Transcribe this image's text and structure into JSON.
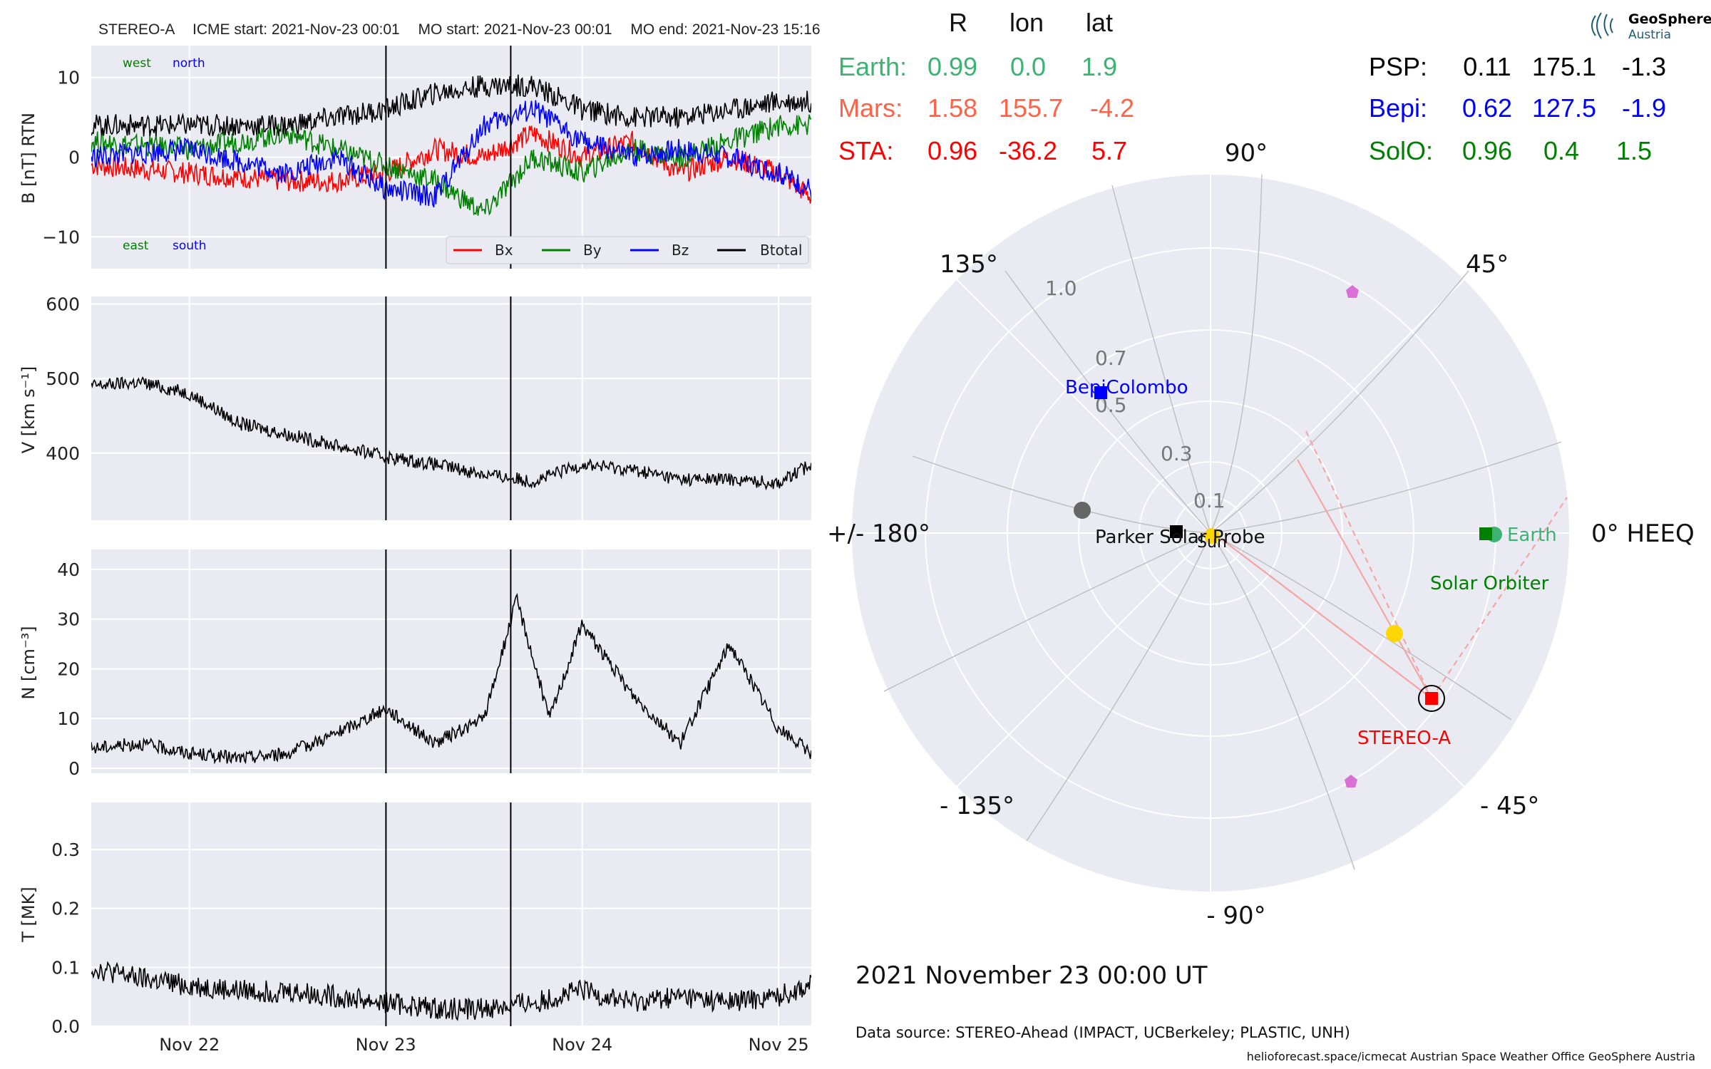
{
  "header": {
    "title": "STEREO-A",
    "icme_start": "ICME start: 2021-Nov-23 00:01",
    "mo_start": "MO start: 2021-Nov-23 00:01",
    "mo_end": "MO end: 2021-Nov-23 15:16"
  },
  "chart_data": [
    {
      "type": "line",
      "panel": "magnetic-field",
      "ylabel": "B [nT] RTN",
      "ylim": [
        -14,
        14
      ],
      "yticks": [
        "10",
        "0",
        "−10"
      ],
      "corner_labels": {
        "west": "west",
        "north": "north",
        "east": "east",
        "south": "south"
      },
      "legend_placement": "bottom-right",
      "series": [
        {
          "name": "Bx",
          "color": "#ff0000",
          "x": [
            "2021-11-21 12:00",
            "2021-11-22 00:00",
            "2021-11-22 12:00",
            "2021-11-22 18:00",
            "2021-11-23 00:00",
            "2021-11-23 06:00",
            "2021-11-23 12:00",
            "2021-11-23 18:00",
            "2021-11-24 00:00",
            "2021-11-24 06:00",
            "2021-11-24 12:00",
            "2021-11-24 18:00",
            "2021-11-25 00:00",
            "2021-11-25 04:00"
          ],
          "values": [
            -1,
            -2,
            -3,
            -3,
            -2,
            1,
            0,
            3,
            0,
            2,
            -2,
            0,
            -2,
            -5
          ]
        },
        {
          "name": "By",
          "color": "#008000",
          "x": [
            "2021-11-21 12:00",
            "2021-11-22 00:00",
            "2021-11-22 12:00",
            "2021-11-22 18:00",
            "2021-11-23 00:00",
            "2021-11-23 06:00",
            "2021-11-23 12:00",
            "2021-11-23 18:00",
            "2021-11-24 00:00",
            "2021-11-24 06:00",
            "2021-11-24 12:00",
            "2021-11-24 18:00",
            "2021-11-25 00:00",
            "2021-11-25 04:00"
          ],
          "values": [
            2,
            1,
            3,
            1,
            -1,
            -3,
            -7,
            0,
            -2,
            1,
            0,
            2,
            4,
            4
          ]
        },
        {
          "name": "Bz",
          "color": "#0000ff",
          "x": [
            "2021-11-21 12:00",
            "2021-11-22 00:00",
            "2021-11-22 12:00",
            "2021-11-22 18:00",
            "2021-11-23 00:00",
            "2021-11-23 06:00",
            "2021-11-23 12:00",
            "2021-11-23 18:00",
            "2021-11-24 00:00",
            "2021-11-24 06:00",
            "2021-11-24 12:00",
            "2021-11-24 18:00",
            "2021-11-25 00:00",
            "2021-11-25 04:00"
          ],
          "values": [
            0,
            1,
            -2,
            0,
            -4,
            -5,
            4,
            6,
            2,
            0,
            1,
            0,
            -2,
            -4
          ]
        },
        {
          "name": "Btotal",
          "color": "#000000",
          "x": [
            "2021-11-21 12:00",
            "2021-11-22 00:00",
            "2021-11-22 12:00",
            "2021-11-22 18:00",
            "2021-11-23 00:00",
            "2021-11-23 06:00",
            "2021-11-23 12:00",
            "2021-11-23 18:00",
            "2021-11-24 00:00",
            "2021-11-24 06:00",
            "2021-11-24 12:00",
            "2021-11-24 18:00",
            "2021-11-25 00:00",
            "2021-11-25 04:00"
          ],
          "values": [
            4,
            4,
            4,
            5,
            6,
            8,
            9,
            9,
            6,
            5,
            5,
            6,
            7,
            7
          ]
        }
      ]
    },
    {
      "type": "line",
      "panel": "speed",
      "ylabel": "V [km s⁻¹]",
      "ylim": [
        310,
        610
      ],
      "yticks": [
        "600",
        "500",
        "400"
      ],
      "series": [
        {
          "color": "#000000",
          "x": [
            "2021-11-21 12:00",
            "2021-11-21 18:00",
            "2021-11-22 00:00",
            "2021-11-22 06:00",
            "2021-11-22 12:00",
            "2021-11-22 18:00",
            "2021-11-23 00:00",
            "2021-11-23 06:00",
            "2021-11-23 12:00",
            "2021-11-23 18:00",
            "2021-11-24 00:00",
            "2021-11-24 06:00",
            "2021-11-24 12:00",
            "2021-11-24 18:00",
            "2021-11-25 00:00",
            "2021-11-25 04:00"
          ],
          "values": [
            490,
            495,
            480,
            440,
            425,
            410,
            395,
            385,
            372,
            362,
            385,
            378,
            365,
            365,
            360,
            385
          ]
        }
      ]
    },
    {
      "type": "line",
      "panel": "density",
      "ylabel": "N [cm⁻³]",
      "ylim": [
        -1,
        44
      ],
      "yticks": [
        "40",
        "30",
        "20",
        "10",
        "0"
      ],
      "series": [
        {
          "color": "#000000",
          "x": [
            "2021-11-21 12:00",
            "2021-11-21 18:00",
            "2021-11-22 00:00",
            "2021-11-22 06:00",
            "2021-11-22 12:00",
            "2021-11-22 18:00",
            "2021-11-23 00:00",
            "2021-11-23 06:00",
            "2021-11-23 12:00",
            "2021-11-23 16:00",
            "2021-11-23 20:00",
            "2021-11-24 00:00",
            "2021-11-24 06:00",
            "2021-11-24 12:00",
            "2021-11-24 18:00",
            "2021-11-25 00:00",
            "2021-11-25 04:00"
          ],
          "values": [
            4,
            5,
            3,
            2,
            3,
            7,
            12,
            5,
            10,
            34,
            10,
            29,
            15,
            5,
            25,
            8,
            3
          ]
        }
      ]
    },
    {
      "type": "line",
      "panel": "temperature",
      "ylabel": "T [MK]",
      "ylim": [
        0,
        0.38
      ],
      "yticks": [
        "0.3",
        "0.2",
        "0.1",
        "0.0"
      ],
      "xticks": [
        "Nov 22",
        "Nov 23",
        "Nov 24",
        "Nov 25"
      ],
      "series": [
        {
          "color": "#000000",
          "x": [
            "2021-11-21 12:00",
            "2021-11-21 18:00",
            "2021-11-22 00:00",
            "2021-11-22 06:00",
            "2021-11-22 12:00",
            "2021-11-22 18:00",
            "2021-11-23 00:00",
            "2021-11-23 06:00",
            "2021-11-23 12:00",
            "2021-11-23 18:00",
            "2021-11-24 00:00",
            "2021-11-24 06:00",
            "2021-11-24 12:00",
            "2021-11-24 18:00",
            "2021-11-25 00:00",
            "2021-11-25 04:00"
          ],
          "values": [
            0.1,
            0.08,
            0.07,
            0.06,
            0.06,
            0.05,
            0.04,
            0.03,
            0.03,
            0.04,
            0.06,
            0.04,
            0.05,
            0.04,
            0.05,
            0.07
          ]
        }
      ]
    },
    {
      "type": "scatter",
      "panel": "polar-position-plot",
      "angle_labels": [
        "90°",
        "45°",
        "0° HEEQ",
        "- 45°",
        "- 90°",
        "- 135°",
        "+/- 180°",
        "135°"
      ],
      "radial_labels": [
        "1.0",
        "0.7",
        "0.5",
        "0.3",
        "0.1"
      ],
      "bodies": [
        {
          "name": "Earth",
          "r": 0.99,
          "lon": 0.0,
          "color": "#3cb371",
          "marker": "square+circle"
        },
        {
          "name": "Solar Orbiter",
          "r": 0.96,
          "lon": 0.4,
          "color": "#008000",
          "marker": "square"
        },
        {
          "name": "STEREO-A",
          "r": 0.96,
          "lon": -36.2,
          "color": "#ff0000",
          "marker": "square"
        },
        {
          "name": "BepiColombo",
          "r": 0.62,
          "lon": 127.5,
          "color": "#0000ff",
          "marker": "square"
        },
        {
          "name": "Parker Solar Probe",
          "r": 0.11,
          "lon": 175.1,
          "color": "#000000",
          "marker": "square"
        },
        {
          "name": "Sun",
          "r": 0.0,
          "lon": 0.0,
          "color": "#ffd700",
          "marker": "circle"
        },
        {
          "name": "Mars",
          "r": 1.58,
          "lon": 155.7,
          "color": "#666666",
          "marker": "circle"
        }
      ]
    }
  ],
  "positions_table": {
    "headers": [
      "R",
      "lon",
      "lat"
    ],
    "left": [
      {
        "label": "Earth:",
        "r": "0.99",
        "lon": "0.0",
        "lat": "1.9",
        "color": "#3cb371"
      },
      {
        "label": "Mars:",
        "r": "1.58",
        "lon": "155.7",
        "lat": "-4.2",
        "color": "#ff6347"
      },
      {
        "label": "STA:",
        "r": "0.96",
        "lon": "-36.2",
        "lat": "5.7",
        "color": "#ff0000"
      }
    ],
    "right": [
      {
        "label": "PSP:",
        "r": "0.11",
        "lon": "175.1",
        "lat": "-1.3",
        "color": "#000000"
      },
      {
        "label": "Bepi:",
        "r": "0.62",
        "lon": "127.5",
        "lat": "-1.9",
        "color": "#0000ff"
      },
      {
        "label": "SolO:",
        "r": "0.96",
        "lon": "0.4",
        "lat": "1.5",
        "color": "#008000"
      }
    ]
  },
  "logo": {
    "line1": "GeoSphere",
    "line2": "Austria"
  },
  "date_label": "2021 November 23  00:00 UT",
  "data_source": "Data source: STEREO-Ahead (IMPACT, UCBerkeley; PLASTIC, UNH)",
  "footer": "helioforecast.space/icmecat   Austrian Space Weather Office   GeoSphere Austria"
}
